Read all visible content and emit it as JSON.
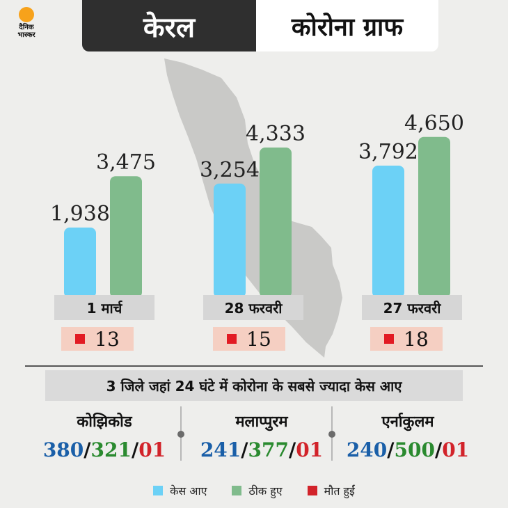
{
  "brand": {
    "line1": "दैनिक",
    "line2": "भास्कर"
  },
  "header": {
    "title_dark": "केरल",
    "title_light": "कोरोना ग्राफ"
  },
  "colors": {
    "cases": "#6cd1f6",
    "recovered": "#80bb8c",
    "deaths": "#e21b23"
  },
  "chart_data": {
    "type": "bar",
    "categories": [
      "1 मार्च",
      "28 फरवरी",
      "27 फरवरी"
    ],
    "series": [
      {
        "name": "केस आए",
        "values": [
          1938,
          3254,
          3792
        ],
        "labels": [
          "1,938",
          "3,254",
          "3,792"
        ]
      },
      {
        "name": "ठीक हुए",
        "values": [
          3475,
          4333,
          4650
        ],
        "labels": [
          "3,475",
          "4,333",
          "4,650"
        ]
      },
      {
        "name": "मौत हुईं",
        "values": [
          13,
          15,
          18
        ],
        "labels": [
          "13",
          "15",
          "18"
        ]
      }
    ],
    "ylim": [
      0,
      4700
    ],
    "legend": "bottom"
  },
  "subtitle": "3 जिले जहां 24 घंटे में कोरोना के सबसे ज्यादा केस आए",
  "districts": [
    {
      "name": "कोझिकोड",
      "cases": "380",
      "recovered": "321",
      "deaths": "01"
    },
    {
      "name": "मलाप्पुरम",
      "cases": "241",
      "recovered": "377",
      "deaths": "01"
    },
    {
      "name": "एर्नाकुलम",
      "cases": "240",
      "recovered": "500",
      "deaths": "01"
    }
  ],
  "separator": "/",
  "legend": [
    {
      "label": "केस आए",
      "color": "#6cd1f6"
    },
    {
      "label": "ठीक हुए",
      "color": "#80bb8c"
    },
    {
      "label": "मौत हुईं",
      "color": "#d2232a"
    }
  ]
}
